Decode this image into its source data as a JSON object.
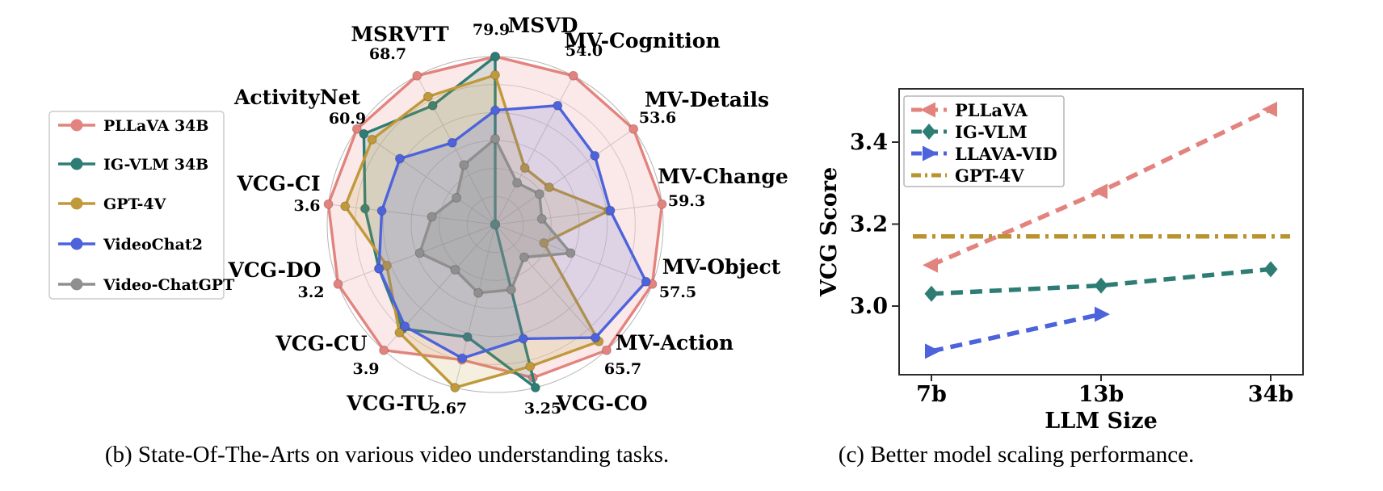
{
  "figure": {
    "caption_b": "(b) State-Of-The-Arts on various video understanding tasks.",
    "caption_c": "(c) Better model scaling performance."
  },
  "chart_data": [
    {
      "type": "radar",
      "title": "",
      "axes": [
        "MSVD",
        "MV-Cognition",
        "MV-Details",
        "MV-Change",
        "MV-Object",
        "MV-Action",
        "VCG-CO",
        "VCG-TU",
        "VCG-CU",
        "VCG-DO",
        "VCG-CI",
        "ActivityNet",
        "MSRVTT"
      ],
      "axis_best_score_labels": [
        "79.9",
        "54.0",
        "53.6",
        "59.3",
        "57.5",
        "65.7",
        "3.25",
        "2.67",
        "3.9",
        "3.2",
        "3.6",
        "60.9",
        "68.7"
      ],
      "grid_rings": 6,
      "legend_position": "left",
      "series": [
        {
          "name": "PLLaVA 34B",
          "color": "#E2837E",
          "fill_alpha": 0.18,
          "values_fraction": [
            1.0,
            1.0,
            1.0,
            1.0,
            1.0,
            1.0,
            0.94,
            0.83,
            1.0,
            1.0,
            1.0,
            1.0,
            1.0
          ]
        },
        {
          "name": "IG-VLM 34B",
          "color": "#2E7D75",
          "fill_alpha": 0.14,
          "values_fraction": [
            1.0,
            0.0,
            0.0,
            0.0,
            0.0,
            0.0,
            1.0,
            0.69,
            0.83,
            0.74,
            0.78,
            0.95,
            0.8
          ]
        },
        {
          "name": "GPT-4V",
          "color": "#C0993A",
          "fill_alpha": 0.16,
          "values_fraction": [
            0.89,
            0.38,
            0.39,
            0.68,
            0.31,
            0.93,
            0.87,
            1.0,
            0.86,
            0.69,
            0.9,
            0.89,
            0.86
          ]
        },
        {
          "name": "VideoChat2",
          "color": "#4D63DC",
          "fill_alpha": 0.16,
          "values_fraction": [
            0.68,
            0.8,
            0.72,
            0.69,
            0.96,
            0.9,
            0.7,
            0.82,
            0.81,
            0.74,
            0.68,
            0.69,
            0.55
          ]
        },
        {
          "name": "Video-ChatGPT",
          "color": "#8F8F8F",
          "fill_alpha": 0.32,
          "values_fraction": [
            0.51,
            0.28,
            0.32,
            0.28,
            0.48,
            0.26,
            0.4,
            0.42,
            0.36,
            0.48,
            0.38,
            0.28,
            0.4
          ]
        }
      ]
    },
    {
      "type": "line",
      "title": "",
      "xlabel": "LLM Size",
      "ylabel": "VCG Score",
      "x_categories": [
        "7b",
        "13b",
        "34b"
      ],
      "yticks": [
        "3.0",
        "3.2",
        "3.4"
      ],
      "ylim": [
        2.83,
        3.53
      ],
      "legend_position": "upper left",
      "series": [
        {
          "name": "PLLaVA",
          "color": "#E2837E",
          "marker": "triangle-left",
          "line_style": "dashed",
          "values": [
            3.1,
            3.28,
            3.48
          ]
        },
        {
          "name": "IG-VLM",
          "color": "#2E7D75",
          "marker": "diamond",
          "line_style": "dashed",
          "values": [
            3.03,
            3.05,
            3.09
          ]
        },
        {
          "name": "LLAVA-VID",
          "color": "#4D63DC",
          "marker": "triangle-right",
          "line_style": "dashed",
          "values": [
            2.89,
            2.98,
            null
          ]
        },
        {
          "name": "GPT-4V",
          "color": "#B9932F",
          "marker": "none",
          "line_style": "dashdot",
          "values": [
            3.17,
            3.17,
            3.17
          ]
        }
      ]
    }
  ]
}
